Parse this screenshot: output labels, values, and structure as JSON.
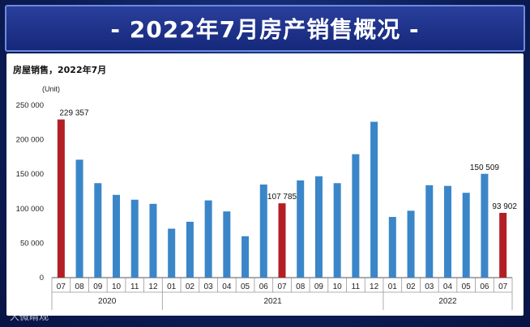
{
  "page": {
    "title": "- 2022年7月房产销售概况 -",
    "watermark": "大微睛观"
  },
  "chart_data": {
    "type": "bar",
    "title": "房屋销售，2022年7月",
    "unit_label": "(Unit)",
    "ylim": [
      0,
      250000
    ],
    "y_ticks": [
      {
        "value": 0,
        "label": "0"
      },
      {
        "value": 50000,
        "label": "50 000"
      },
      {
        "value": 100000,
        "label": "100 000"
      },
      {
        "value": 150000,
        "label": "150 000"
      },
      {
        "value": 200000,
        "label": "200 000"
      },
      {
        "value": 250000,
        "label": "250 000"
      }
    ],
    "categories": [
      "07",
      "08",
      "09",
      "10",
      "11",
      "12",
      "01",
      "02",
      "03",
      "04",
      "05",
      "06",
      "07",
      "08",
      "09",
      "10",
      "11",
      "12",
      "01",
      "02",
      "03",
      "04",
      "05",
      "06",
      "07"
    ],
    "years": [
      {
        "label": "2020",
        "start": 0,
        "end": 5
      },
      {
        "label": "2021",
        "start": 6,
        "end": 17
      },
      {
        "label": "2022",
        "start": 18,
        "end": 24
      }
    ],
    "values": [
      229357,
      171000,
      137000,
      120000,
      113000,
      107000,
      71000,
      81000,
      112000,
      96000,
      60000,
      135000,
      107785,
      141000,
      147000,
      137000,
      179000,
      226000,
      88000,
      97000,
      134000,
      133000,
      123000,
      150509,
      93902
    ],
    "highlight_indices": [
      0,
      12,
      24
    ],
    "colors": {
      "normal": "#3a86c8",
      "highlight": "#b21f25"
    },
    "data_labels": [
      {
        "index": 0,
        "label": "229 357"
      },
      {
        "index": 12,
        "label": "107 785"
      },
      {
        "index": 23,
        "label": "150 509"
      },
      {
        "index": 24,
        "label": "93 902"
      }
    ]
  }
}
